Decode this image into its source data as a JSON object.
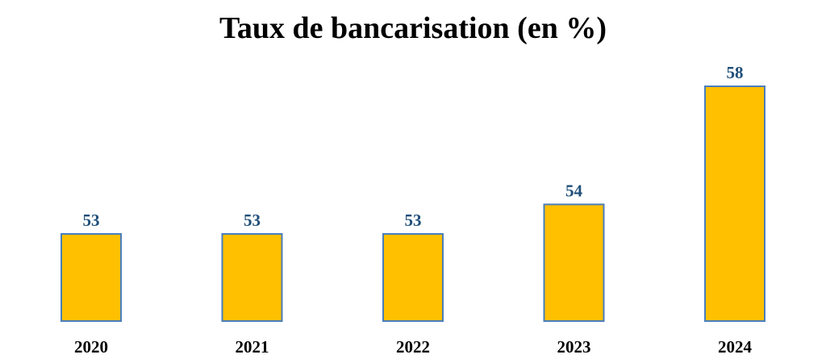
{
  "chart_data": {
    "type": "bar",
    "title": "Taux de bancarisation (en %)",
    "xlabel": "",
    "ylabel": "",
    "categories": [
      "2020",
      "2021",
      "2022",
      "2023",
      "2024"
    ],
    "values": [
      53,
      53,
      53,
      54,
      58
    ],
    "ylim": [
      50,
      59
    ],
    "grid": false,
    "legend": "none",
    "colors": {
      "bar_fill": "#FFC000",
      "bar_stroke": "#4A7EBB",
      "value_label": "#1F4E79",
      "tick_label": "#000000"
    }
  }
}
